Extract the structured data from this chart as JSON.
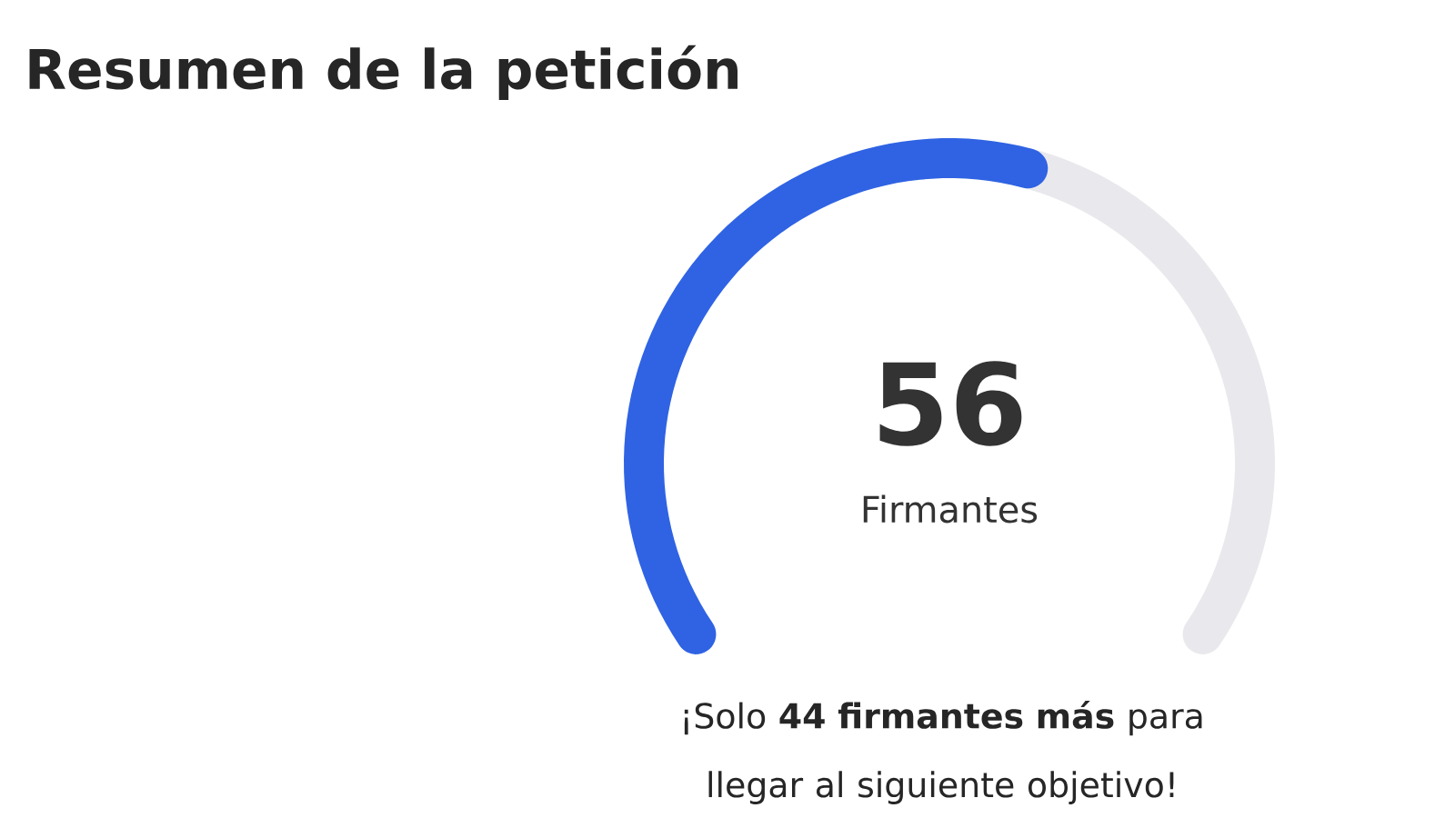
{
  "chart_data": {
    "type": "donut",
    "title": "Resumen de la petición",
    "categories": [
      null,
      null
    ],
    "values": [
      56,
      44
    ],
    "value_labels": [
      "56",
      null
    ],
    "colors": [
      "#2f63e3",
      "#e9e9ed"
    ],
    "annotations": [
      "Firmantes",
      "¡Solo **44 firmantes más** para llegar al siguiente objetivo!"
    ]
  }
}
